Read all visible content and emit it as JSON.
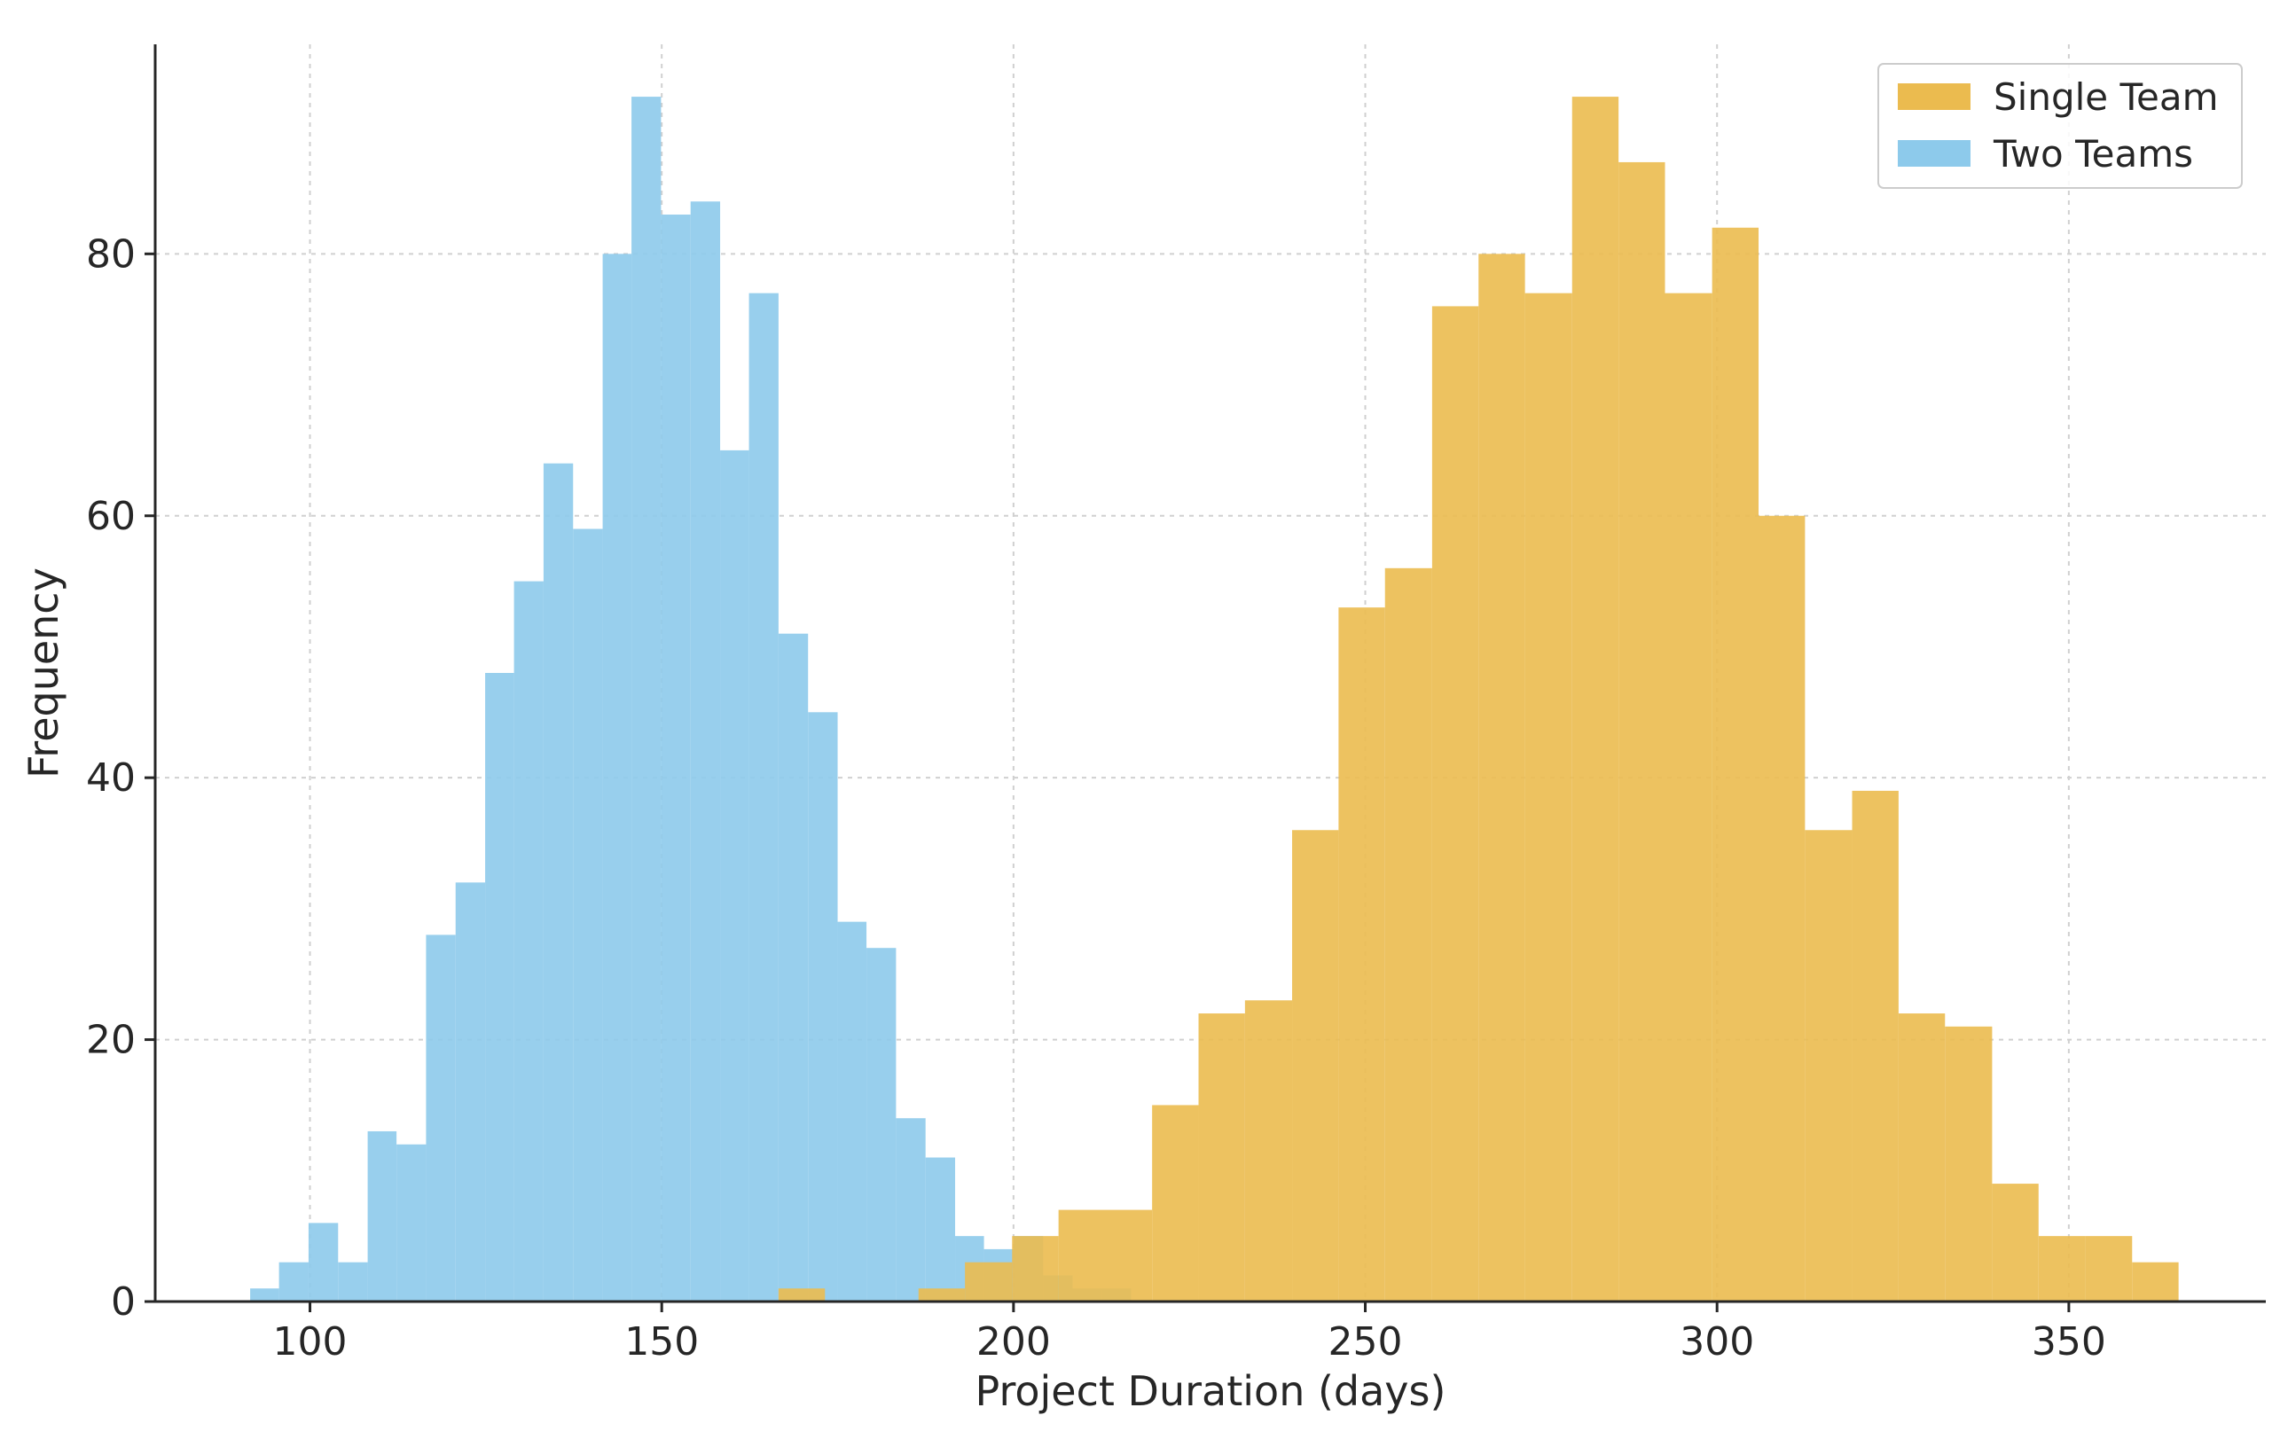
{
  "chart_data": {
    "type": "bar",
    "subtype": "overlapping-histogram",
    "title": "",
    "xlabel": "Project Duration (days)",
    "ylabel": "Frequency",
    "xlim": [
      78,
      378
    ],
    "ylim": [
      0,
      96
    ],
    "xticks": [
      100,
      150,
      200,
      250,
      300,
      350
    ],
    "yticks": [
      0,
      20,
      40,
      60,
      80
    ],
    "grid": true,
    "legend": "top-right",
    "series": [
      {
        "name": "Two Teams",
        "color": "#8DCAEB",
        "bins": [
          {
            "x0": 91.5,
            "x1": 95.6,
            "value": 1
          },
          {
            "x0": 95.6,
            "x1": 99.8,
            "value": 3
          },
          {
            "x0": 99.8,
            "x1": 104.0,
            "value": 6
          },
          {
            "x0": 104.0,
            "x1": 108.2,
            "value": 3
          },
          {
            "x0": 108.2,
            "x1": 112.3,
            "value": 13
          },
          {
            "x0": 112.3,
            "x1": 116.5,
            "value": 12
          },
          {
            "x0": 116.5,
            "x1": 120.7,
            "value": 28
          },
          {
            "x0": 120.7,
            "x1": 124.9,
            "value": 32
          },
          {
            "x0": 124.9,
            "x1": 129.0,
            "value": 48
          },
          {
            "x0": 129.0,
            "x1": 133.2,
            "value": 55
          },
          {
            "x0": 133.2,
            "x1": 137.4,
            "value": 64
          },
          {
            "x0": 137.4,
            "x1": 141.6,
            "value": 59
          },
          {
            "x0": 141.6,
            "x1": 145.7,
            "value": 80
          },
          {
            "x0": 145.7,
            "x1": 149.9,
            "value": 92
          },
          {
            "x0": 149.9,
            "x1": 154.1,
            "value": 83
          },
          {
            "x0": 154.1,
            "x1": 158.3,
            "value": 84
          },
          {
            "x0": 158.3,
            "x1": 162.4,
            "value": 65
          },
          {
            "x0": 162.4,
            "x1": 166.6,
            "value": 77
          },
          {
            "x0": 166.6,
            "x1": 170.8,
            "value": 51
          },
          {
            "x0": 170.8,
            "x1": 175.0,
            "value": 45
          },
          {
            "x0": 175.0,
            "x1": 179.1,
            "value": 29
          },
          {
            "x0": 179.1,
            "x1": 183.3,
            "value": 27
          },
          {
            "x0": 183.3,
            "x1": 187.5,
            "value": 14
          },
          {
            "x0": 187.5,
            "x1": 191.7,
            "value": 11
          },
          {
            "x0": 191.7,
            "x1": 195.8,
            "value": 5
          },
          {
            "x0": 195.8,
            "x1": 200.0,
            "value": 4
          },
          {
            "x0": 200.0,
            "x1": 204.2,
            "value": 5
          },
          {
            "x0": 204.2,
            "x1": 208.4,
            "value": 2
          },
          {
            "x0": 208.4,
            "x1": 212.5,
            "value": 1
          },
          {
            "x0": 212.5,
            "x1": 216.7,
            "value": 1
          }
        ]
      },
      {
        "name": "Single Team",
        "color": "#EBBB4F",
        "bins": [
          {
            "x0": 166.6,
            "x1": 173.2,
            "value": 1
          },
          {
            "x0": 186.5,
            "x1": 193.1,
            "value": 1
          },
          {
            "x0": 193.1,
            "x1": 199.8,
            "value": 3
          },
          {
            "x0": 199.8,
            "x1": 206.4,
            "value": 5
          },
          {
            "x0": 206.4,
            "x1": 213.0,
            "value": 7
          },
          {
            "x0": 213.0,
            "x1": 219.7,
            "value": 7
          },
          {
            "x0": 219.7,
            "x1": 226.3,
            "value": 15
          },
          {
            "x0": 226.3,
            "x1": 232.9,
            "value": 22
          },
          {
            "x0": 232.9,
            "x1": 239.6,
            "value": 23
          },
          {
            "x0": 239.6,
            "x1": 246.2,
            "value": 36
          },
          {
            "x0": 246.2,
            "x1": 252.8,
            "value": 53
          },
          {
            "x0": 252.8,
            "x1": 259.5,
            "value": 56
          },
          {
            "x0": 259.5,
            "x1": 266.1,
            "value": 76
          },
          {
            "x0": 266.1,
            "x1": 272.7,
            "value": 80
          },
          {
            "x0": 272.7,
            "x1": 279.4,
            "value": 77
          },
          {
            "x0": 279.4,
            "x1": 286.0,
            "value": 92
          },
          {
            "x0": 286.0,
            "x1": 292.6,
            "value": 87
          },
          {
            "x0": 292.6,
            "x1": 299.3,
            "value": 77
          },
          {
            "x0": 299.3,
            "x1": 305.9,
            "value": 82
          },
          {
            "x0": 305.9,
            "x1": 312.5,
            "value": 60
          },
          {
            "x0": 312.5,
            "x1": 319.2,
            "value": 36
          },
          {
            "x0": 319.2,
            "x1": 325.8,
            "value": 39
          },
          {
            "x0": 325.8,
            "x1": 332.4,
            "value": 22
          },
          {
            "x0": 332.4,
            "x1": 339.1,
            "value": 21
          },
          {
            "x0": 339.1,
            "x1": 345.7,
            "value": 9
          },
          {
            "x0": 345.7,
            "x1": 352.3,
            "value": 5
          },
          {
            "x0": 352.3,
            "x1": 359.0,
            "value": 5
          },
          {
            "x0": 359.0,
            "x1": 365.6,
            "value": 3
          }
        ]
      }
    ],
    "legend_order": [
      "Single Team",
      "Two Teams"
    ],
    "overlap_color": "#93B5A5"
  }
}
